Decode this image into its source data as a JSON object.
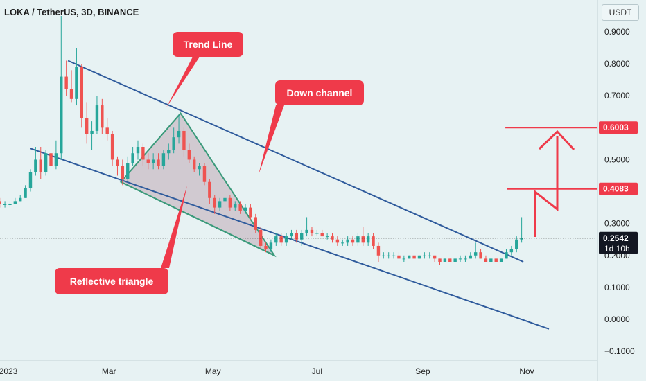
{
  "header": {
    "title": "LOKA / TetherUS, 3D, BINANCE",
    "currency": "USDT"
  },
  "colors": {
    "background": "#e7f2f3",
    "up": "#26a69a",
    "down": "#ef5350",
    "channel": "#2f5b9c",
    "triangle_stroke": "#3a9a7a",
    "triangle_fill": "#c9bcc6",
    "annotation": "#ef3a4a"
  },
  "chart_data": {
    "type": "candlestick",
    "title": "LOKA / TetherUS, 3D, BINANCE",
    "ylim": [
      -0.1,
      0.95
    ],
    "y_ticks": [
      "0.9000",
      "0.8000",
      "0.7000",
      "0.6000",
      "0.5000",
      "0.4000",
      "0.3000",
      "0.2000",
      "0.1000",
      "0.0000",
      "−0.1000"
    ],
    "x_ticks": [
      {
        "label": "2023",
        "date": "2023-01-01"
      },
      {
        "label": "Mar",
        "date": "2023-03-01"
      },
      {
        "label": "May",
        "date": "2023-05-01"
      },
      {
        "label": "Jul",
        "date": "2023-07-01"
      },
      {
        "label": "Sep",
        "date": "2023-09-01"
      },
      {
        "label": "Nov",
        "date": "2023-11-01"
      }
    ],
    "price_markers": [
      {
        "label": "0.6003",
        "value": 0.6003,
        "style": "red"
      },
      {
        "label": "0.4083",
        "value": 0.4083,
        "style": "red"
      },
      {
        "label": "0.2542",
        "value": 0.2542,
        "style": "dark"
      }
    ],
    "countdown": "1d 10h",
    "current_price": 0.2542,
    "candles": [
      [
        "2022-12-24",
        0.39,
        0.4,
        0.36,
        0.37
      ],
      [
        "2022-12-27",
        0.37,
        0.38,
        0.35,
        0.36
      ],
      [
        "2022-12-30",
        0.36,
        0.37,
        0.35,
        0.36
      ],
      [
        "2023-01-02",
        0.36,
        0.37,
        0.35,
        0.36
      ],
      [
        "2023-01-05",
        0.36,
        0.38,
        0.36,
        0.37
      ],
      [
        "2023-01-08",
        0.37,
        0.39,
        0.37,
        0.38
      ],
      [
        "2023-01-11",
        0.38,
        0.42,
        0.38,
        0.41
      ],
      [
        "2023-01-14",
        0.41,
        0.47,
        0.4,
        0.46
      ],
      [
        "2023-01-17",
        0.46,
        0.54,
        0.45,
        0.5
      ],
      [
        "2023-01-20",
        0.5,
        0.54,
        0.44,
        0.46
      ],
      [
        "2023-01-23",
        0.46,
        0.53,
        0.45,
        0.52
      ],
      [
        "2023-01-26",
        0.52,
        0.53,
        0.47,
        0.48
      ],
      [
        "2023-01-29",
        0.48,
        0.56,
        0.47,
        0.52
      ],
      [
        "2023-02-01",
        0.52,
        0.95,
        0.5,
        0.76
      ],
      [
        "2023-02-04",
        0.76,
        0.81,
        0.7,
        0.72
      ],
      [
        "2023-02-07",
        0.72,
        0.78,
        0.68,
        0.69
      ],
      [
        "2023-02-10",
        0.69,
        0.85,
        0.67,
        0.79
      ],
      [
        "2023-02-13",
        0.79,
        0.8,
        0.6,
        0.63
      ],
      [
        "2023-02-16",
        0.63,
        0.68,
        0.55,
        0.58
      ],
      [
        "2023-02-19",
        0.58,
        0.62,
        0.53,
        0.59
      ],
      [
        "2023-02-22",
        0.59,
        0.7,
        0.58,
        0.67
      ],
      [
        "2023-02-25",
        0.67,
        0.69,
        0.58,
        0.6
      ],
      [
        "2023-02-28",
        0.6,
        0.63,
        0.56,
        0.58
      ],
      [
        "2023-03-03",
        0.58,
        0.59,
        0.48,
        0.5
      ],
      [
        "2023-03-06",
        0.5,
        0.51,
        0.45,
        0.48
      ],
      [
        "2023-03-09",
        0.48,
        0.5,
        0.42,
        0.44
      ],
      [
        "2023-03-12",
        0.44,
        0.51,
        0.43,
        0.49
      ],
      [
        "2023-03-15",
        0.49,
        0.54,
        0.48,
        0.52
      ],
      [
        "2023-03-18",
        0.52,
        0.56,
        0.5,
        0.54
      ],
      [
        "2023-03-21",
        0.54,
        0.55,
        0.48,
        0.5
      ],
      [
        "2023-03-24",
        0.5,
        0.52,
        0.47,
        0.49
      ],
      [
        "2023-03-27",
        0.49,
        0.52,
        0.47,
        0.5
      ],
      [
        "2023-03-30",
        0.5,
        0.52,
        0.47,
        0.48
      ],
      [
        "2023-04-02",
        0.48,
        0.53,
        0.47,
        0.52
      ],
      [
        "2023-04-05",
        0.52,
        0.55,
        0.5,
        0.53
      ],
      [
        "2023-04-08",
        0.53,
        0.6,
        0.52,
        0.57
      ],
      [
        "2023-04-11",
        0.57,
        0.64,
        0.55,
        0.59
      ],
      [
        "2023-04-14",
        0.59,
        0.6,
        0.51,
        0.53
      ],
      [
        "2023-04-17",
        0.53,
        0.55,
        0.49,
        0.5
      ],
      [
        "2023-04-20",
        0.5,
        0.51,
        0.46,
        0.47
      ],
      [
        "2023-04-23",
        0.47,
        0.49,
        0.45,
        0.48
      ],
      [
        "2023-04-26",
        0.48,
        0.49,
        0.42,
        0.43
      ],
      [
        "2023-04-29",
        0.43,
        0.44,
        0.36,
        0.38
      ],
      [
        "2023-05-02",
        0.38,
        0.39,
        0.33,
        0.35
      ],
      [
        "2023-05-05",
        0.35,
        0.38,
        0.34,
        0.37
      ],
      [
        "2023-05-08",
        0.37,
        0.43,
        0.35,
        0.38
      ],
      [
        "2023-05-11",
        0.38,
        0.39,
        0.34,
        0.35
      ],
      [
        "2023-05-14",
        0.35,
        0.37,
        0.34,
        0.36
      ],
      [
        "2023-05-17",
        0.36,
        0.37,
        0.33,
        0.34
      ],
      [
        "2023-05-20",
        0.34,
        0.36,
        0.33,
        0.35
      ],
      [
        "2023-05-23",
        0.35,
        0.36,
        0.31,
        0.32
      ],
      [
        "2023-05-26",
        0.32,
        0.33,
        0.27,
        0.28
      ],
      [
        "2023-05-29",
        0.28,
        0.29,
        0.22,
        0.23
      ],
      [
        "2023-06-01",
        0.23,
        0.24,
        0.21,
        0.22
      ],
      [
        "2023-06-04",
        0.22,
        0.25,
        0.21,
        0.24
      ],
      [
        "2023-06-07",
        0.24,
        0.27,
        0.23,
        0.26
      ],
      [
        "2023-06-10",
        0.26,
        0.27,
        0.23,
        0.24
      ],
      [
        "2023-06-13",
        0.24,
        0.27,
        0.23,
        0.26
      ],
      [
        "2023-06-16",
        0.26,
        0.28,
        0.25,
        0.27
      ],
      [
        "2023-06-19",
        0.27,
        0.28,
        0.24,
        0.25
      ],
      [
        "2023-06-22",
        0.25,
        0.28,
        0.23,
        0.27
      ],
      [
        "2023-06-25",
        0.27,
        0.32,
        0.26,
        0.28
      ],
      [
        "2023-06-28",
        0.28,
        0.29,
        0.26,
        0.27
      ],
      [
        "2023-07-01",
        0.27,
        0.28,
        0.26,
        0.27
      ],
      [
        "2023-07-04",
        0.27,
        0.28,
        0.26,
        0.26
      ],
      [
        "2023-07-07",
        0.26,
        0.27,
        0.25,
        0.26
      ],
      [
        "2023-07-10",
        0.26,
        0.27,
        0.24,
        0.25
      ],
      [
        "2023-07-13",
        0.25,
        0.26,
        0.23,
        0.24
      ],
      [
        "2023-07-16",
        0.24,
        0.25,
        0.23,
        0.24
      ],
      [
        "2023-07-19",
        0.24,
        0.26,
        0.23,
        0.25
      ],
      [
        "2023-07-22",
        0.25,
        0.26,
        0.23,
        0.24
      ],
      [
        "2023-07-25",
        0.24,
        0.27,
        0.23,
        0.26
      ],
      [
        "2023-07-28",
        0.26,
        0.29,
        0.23,
        0.24
      ],
      [
        "2023-07-31",
        0.24,
        0.27,
        0.23,
        0.26
      ],
      [
        "2023-08-03",
        0.26,
        0.27,
        0.22,
        0.23
      ],
      [
        "2023-08-06",
        0.23,
        0.24,
        0.18,
        0.2
      ],
      [
        "2023-08-09",
        0.2,
        0.21,
        0.19,
        0.2
      ],
      [
        "2023-08-12",
        0.2,
        0.21,
        0.19,
        0.2
      ],
      [
        "2023-08-15",
        0.2,
        0.21,
        0.19,
        0.2
      ],
      [
        "2023-08-18",
        0.2,
        0.21,
        0.19,
        0.19
      ],
      [
        "2023-08-21",
        0.19,
        0.2,
        0.18,
        0.19
      ],
      [
        "2023-08-24",
        0.19,
        0.2,
        0.19,
        0.2
      ],
      [
        "2023-08-27",
        0.2,
        0.2,
        0.19,
        0.19
      ],
      [
        "2023-08-30",
        0.19,
        0.2,
        0.19,
        0.2
      ],
      [
        "2023-09-02",
        0.2,
        0.21,
        0.19,
        0.2
      ],
      [
        "2023-09-05",
        0.2,
        0.21,
        0.19,
        0.2
      ],
      [
        "2023-09-08",
        0.2,
        0.2,
        0.18,
        0.19
      ],
      [
        "2023-09-11",
        0.19,
        0.19,
        0.17,
        0.18
      ],
      [
        "2023-09-14",
        0.18,
        0.19,
        0.18,
        0.19
      ],
      [
        "2023-09-17",
        0.19,
        0.19,
        0.18,
        0.18
      ],
      [
        "2023-09-20",
        0.18,
        0.19,
        0.18,
        0.19
      ],
      [
        "2023-09-23",
        0.19,
        0.2,
        0.18,
        0.19
      ],
      [
        "2023-09-26",
        0.19,
        0.2,
        0.18,
        0.19
      ],
      [
        "2023-09-29",
        0.19,
        0.21,
        0.19,
        0.2
      ],
      [
        "2023-10-02",
        0.2,
        0.24,
        0.19,
        0.21
      ],
      [
        "2023-10-05",
        0.21,
        0.22,
        0.19,
        0.19
      ],
      [
        "2023-10-08",
        0.19,
        0.2,
        0.18,
        0.18
      ],
      [
        "2023-10-11",
        0.18,
        0.19,
        0.18,
        0.19
      ],
      [
        "2023-10-14",
        0.19,
        0.19,
        0.18,
        0.18
      ],
      [
        "2023-10-17",
        0.18,
        0.19,
        0.18,
        0.19
      ],
      [
        "2023-10-20",
        0.19,
        0.22,
        0.19,
        0.21
      ],
      [
        "2023-10-23",
        0.21,
        0.23,
        0.2,
        0.22
      ],
      [
        "2023-10-26",
        0.22,
        0.26,
        0.21,
        0.25
      ],
      [
        "2023-10-29",
        0.25,
        0.32,
        0.24,
        0.2542
      ]
    ],
    "trend_lines": [
      {
        "name": "upper-channel",
        "from": [
          "2023-02-05",
          0.81
        ],
        "to": [
          "2023-10-30",
          0.18
        ]
      },
      {
        "name": "lower-channel",
        "from": [
          "2023-01-14",
          0.535
        ],
        "to": [
          "2023-11-14",
          -0.03
        ]
      },
      {
        "name": "triangle-lower-side",
        "from": [
          "2023-03-08",
          0.43
        ],
        "to": [
          "2023-06-06",
          0.2
        ]
      }
    ],
    "triangle": [
      [
        "2023-03-08",
        0.43
      ],
      [
        "2023-04-12",
        0.645
      ],
      [
        "2023-06-06",
        0.2
      ]
    ],
    "annotations": [
      {
        "text": "Trend Line"
      },
      {
        "text": "Down channel"
      },
      {
        "text": "Reflective triangle"
      }
    ]
  }
}
